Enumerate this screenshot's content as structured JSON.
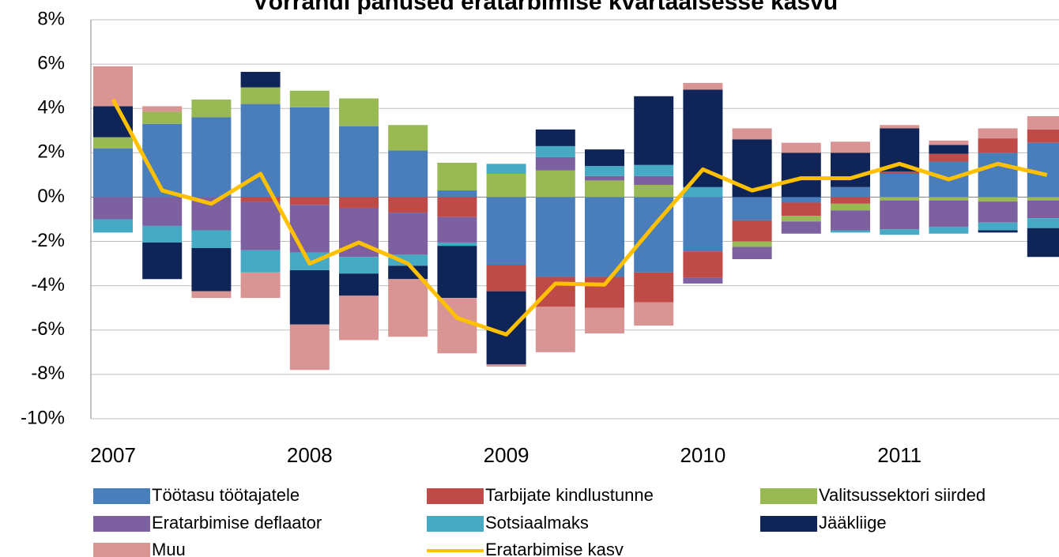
{
  "chart_data": {
    "type": "bar",
    "title": "Võrrandi panused eratarbimise kvartaalsesse kasvu",
    "categories": [
      "2007",
      null,
      null,
      null,
      "2008",
      null,
      null,
      null,
      "2009",
      null,
      null,
      null,
      "2010",
      null,
      null,
      null,
      "2011",
      null,
      null,
      null
    ],
    "ylim": [
      -10,
      8
    ],
    "yticks": [
      {
        "value": -10,
        "label": "-10%"
      },
      {
        "value": -8,
        "label": "-8%"
      },
      {
        "value": -6,
        "label": "-6%"
      },
      {
        "value": -4,
        "label": "-4%"
      },
      {
        "value": -2,
        "label": "-2%"
      },
      {
        "value": 0,
        "label": "0%"
      },
      {
        "value": 2,
        "label": "2%"
      },
      {
        "value": 4,
        "label": "4%"
      },
      {
        "value": 6,
        "label": "6%"
      },
      {
        "value": 8,
        "label": "8%"
      }
    ],
    "grid": true,
    "series": [
      {
        "name": "Töötasu töötajatele",
        "color": "#4a7ebb",
        "values": [
          2.2,
          3.3,
          3.6,
          4.2,
          4.05,
          3.2,
          2.1,
          0.3,
          -3.05,
          -3.6,
          -3.6,
          -3.4,
          -2.45,
          -1.05,
          -0.25,
          0.45,
          1.05,
          1.6,
          2.0,
          2.45
        ]
      },
      {
        "name": "Tarbijate kindlustunne",
        "color": "#be4b48",
        "values": [
          0,
          0,
          0,
          -0.2,
          -0.35,
          -0.5,
          -0.7,
          -0.9,
          -1.2,
          -1.35,
          -1.4,
          -1.35,
          -1.2,
          -0.95,
          -0.6,
          -0.3,
          0.1,
          0.35,
          0.65,
          0.6
        ]
      },
      {
        "name": "Valitsussektori siirded",
        "color": "#98b954",
        "values": [
          0.5,
          0.55,
          0.8,
          0.75,
          0.75,
          1.25,
          1.15,
          1.25,
          1.05,
          1.2,
          0.75,
          0.55,
          0,
          -0.25,
          -0.25,
          -0.3,
          -0.15,
          -0.15,
          -0.2,
          -0.15
        ]
      },
      {
        "name": "Eratarbimise deflaator",
        "color": "#7d60a0",
        "values": [
          -1.0,
          -1.3,
          -1.5,
          -2.2,
          -2.15,
          -2.2,
          -1.9,
          -1.15,
          0,
          0.6,
          0.2,
          0.4,
          -0.25,
          -0.55,
          -0.55,
          -0.9,
          -1.3,
          -1.2,
          -0.95,
          -0.8
        ]
      },
      {
        "name": "Sotsiaalmaks",
        "color": "#46aac5",
        "values": [
          -0.6,
          -0.75,
          -0.8,
          -1.0,
          -0.8,
          -0.75,
          -0.5,
          -0.15,
          0.45,
          0.5,
          0.45,
          0.5,
          0.45,
          0,
          0,
          -0.1,
          -0.25,
          -0.3,
          -0.35,
          -0.45
        ]
      },
      {
        "name": "Jääkliige",
        "color": "#0f2557",
        "values": [
          1.4,
          -1.65,
          -1.95,
          0.7,
          -2.45,
          -1.0,
          -0.6,
          -2.35,
          -3.3,
          0.75,
          0.75,
          3.1,
          4.4,
          2.6,
          2.0,
          1.55,
          1.95,
          0.4,
          -0.1,
          -1.3
        ]
      },
      {
        "name": "Muu",
        "color": "#d99593",
        "values": [
          1.8,
          0.25,
          -0.3,
          -1.15,
          -2.05,
          -2.0,
          -2.6,
          -2.5,
          -0.1,
          -2.05,
          -1.15,
          -1.05,
          0.3,
          0.5,
          0.45,
          0.5,
          0.15,
          0.2,
          0.45,
          0.6
        ]
      },
      {
        "name": "Eratarbimise kasv",
        "type": "line",
        "color": "#ffc000",
        "values": [
          4.4,
          0.3,
          -0.3,
          1.05,
          -3.0,
          -2.05,
          -3.0,
          -5.45,
          -6.2,
          -3.9,
          -3.95,
          -1.3,
          1.25,
          0.3,
          0.85,
          0.85,
          1.5,
          0.8,
          1.5,
          1.0
        ]
      }
    ]
  }
}
